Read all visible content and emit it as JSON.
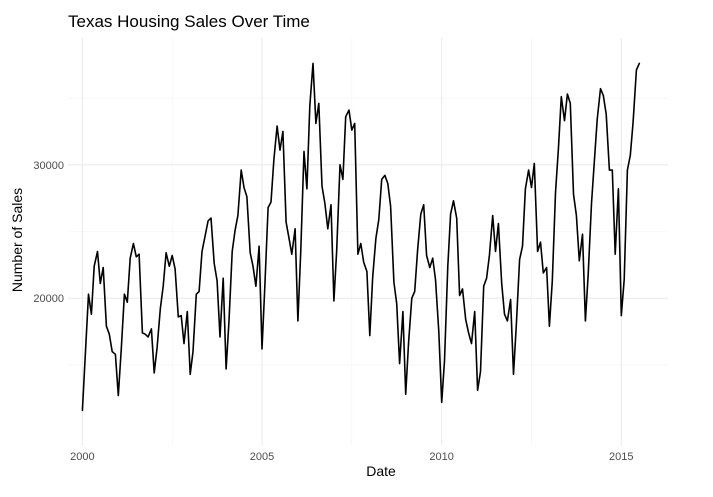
{
  "chart_data": {
    "type": "line",
    "title": "Texas Housing Sales Over Time",
    "xlabel": "Date",
    "ylabel": "Number of Sales",
    "xlim": [
      1999.6,
      2016.3
    ],
    "ylim": [
      9000,
      39500
    ],
    "x_ticks": [
      2000,
      2005,
      2010,
      2015
    ],
    "x_tick_labels": [
      "2000",
      "2005",
      "2010",
      "2015"
    ],
    "y_ticks": [
      20000,
      30000
    ],
    "y_tick_labels": [
      "20000",
      "30000"
    ],
    "grid": true,
    "legend": "none",
    "series": [
      {
        "x": [
          2000.0,
          2000.08,
          2000.17,
          2000.25,
          2000.33,
          2000.42,
          2000.5,
          2000.58,
          2000.67,
          2000.75,
          2000.83,
          2000.92,
          2001.0,
          2001.08,
          2001.17,
          2001.25,
          2001.33,
          2001.42,
          2001.5,
          2001.58,
          2001.67,
          2001.75,
          2001.83,
          2001.92,
          2002.0,
          2002.08,
          2002.17,
          2002.25,
          2002.33,
          2002.42,
          2002.5,
          2002.58,
          2002.67,
          2002.75,
          2002.83,
          2002.92,
          2003.0,
          2003.08,
          2003.17,
          2003.25,
          2003.33,
          2003.42,
          2003.5,
          2003.58,
          2003.67,
          2003.75,
          2003.83,
          2003.92,
          2004.0,
          2004.08,
          2004.17,
          2004.25,
          2004.33,
          2004.42,
          2004.5,
          2004.58,
          2004.67,
          2004.75,
          2004.83,
          2004.92,
          2005.0,
          2005.08,
          2005.17,
          2005.25,
          2005.33,
          2005.42,
          2005.5,
          2005.58,
          2005.67,
          2005.75,
          2005.83,
          2005.92,
          2006.0,
          2006.08,
          2006.17,
          2006.25,
          2006.33,
          2006.42,
          2006.5,
          2006.58,
          2006.67,
          2006.75,
          2006.83,
          2006.92,
          2007.0,
          2007.08,
          2007.17,
          2007.25,
          2007.33,
          2007.42,
          2007.5,
          2007.58,
          2007.67,
          2007.75,
          2007.83,
          2007.92,
          2008.0,
          2008.08,
          2008.17,
          2008.25,
          2008.33,
          2008.42,
          2008.5,
          2008.58,
          2008.67,
          2008.75,
          2008.83,
          2008.92,
          2009.0,
          2009.08,
          2009.17,
          2009.25,
          2009.33,
          2009.42,
          2009.5,
          2009.58,
          2009.67,
          2009.75,
          2009.83,
          2009.92,
          2010.0,
          2010.08,
          2010.17,
          2010.25,
          2010.33,
          2010.42,
          2010.5,
          2010.58,
          2010.67,
          2010.75,
          2010.83,
          2010.92,
          2011.0,
          2011.08,
          2011.17,
          2011.25,
          2011.33,
          2011.42,
          2011.5,
          2011.58,
          2011.67,
          2011.75,
          2011.83,
          2011.92,
          2012.0,
          2012.08,
          2012.17,
          2012.25,
          2012.33,
          2012.42,
          2012.5,
          2012.58,
          2012.67,
          2012.75,
          2012.83,
          2012.92,
          2013.0,
          2013.08,
          2013.17,
          2013.25,
          2013.33,
          2013.42,
          2013.5,
          2013.58,
          2013.67,
          2013.75,
          2013.83,
          2013.92,
          2014.0,
          2014.08,
          2014.17,
          2014.25,
          2014.33,
          2014.42,
          2014.5,
          2014.58,
          2014.67,
          2014.75,
          2014.83,
          2014.92,
          2015.0,
          2015.08,
          2015.17,
          2015.25,
          2015.33,
          2015.42,
          2015.5
        ],
        "values": [
          11600,
          15600,
          20300,
          18800,
          22400,
          23500,
          21100,
          22300,
          17900,
          17300,
          16000,
          15800,
          12700,
          16100,
          20300,
          19700,
          23000,
          24100,
          23100,
          23300,
          17400,
          17300,
          17100,
          17700,
          14400,
          16300,
          19200,
          20900,
          23400,
          22400,
          23200,
          22200,
          18600,
          18700,
          16600,
          19000,
          14300,
          16000,
          20300,
          20500,
          23500,
          24700,
          25800,
          26000,
          22600,
          21300,
          17100,
          21500,
          14700,
          18300,
          23500,
          25100,
          26200,
          29600,
          28300,
          27600,
          23400,
          22400,
          20900,
          23900,
          16200,
          21000,
          26800,
          27200,
          30400,
          32900,
          31100,
          32500,
          25700,
          24500,
          23300,
          25200,
          18300,
          23600,
          31000,
          28200,
          34400,
          37600,
          33100,
          34600,
          28400,
          27100,
          25200,
          27000,
          19800,
          23600,
          30000,
          28900,
          33600,
          34100,
          32600,
          33100,
          23300,
          24100,
          22700,
          22000,
          17200,
          21600,
          24500,
          25900,
          28900,
          29200,
          28600,
          26900,
          21200,
          19600,
          15100,
          19000,
          12800,
          16700,
          20000,
          20500,
          23600,
          26300,
          27000,
          23200,
          22300,
          23000,
          21400,
          17500,
          12200,
          15300,
          22400,
          26300,
          27300,
          26000,
          20200,
          20700,
          18400,
          17400,
          16600,
          19000,
          13100,
          14500,
          20900,
          21500,
          23200,
          26200,
          23500,
          25600,
          21100,
          18800,
          18300,
          19900,
          14300,
          18100,
          22900,
          23900,
          28200,
          29600,
          28300,
          30100,
          23500,
          24200,
          21900,
          22300,
          17900,
          21300,
          27900,
          31200,
          35100,
          33300,
          35300,
          34600,
          27800,
          26200,
          22800,
          24800,
          18300,
          21800,
          27100,
          30200,
          33400,
          35700,
          35200,
          33800,
          29600,
          29600,
          23300,
          28200,
          18700,
          21400,
          29600,
          30700,
          33200,
          37100,
          37600
        ]
      }
    ]
  }
}
